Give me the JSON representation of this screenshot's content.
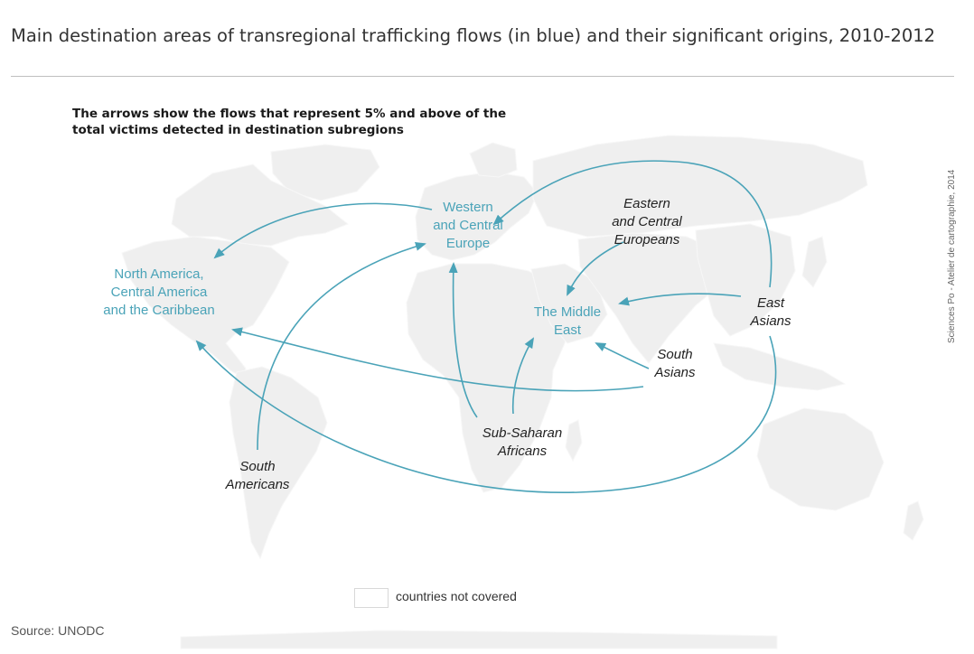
{
  "title": "Main destination areas of transregional trafficking flows (in blue) and their significant origins, 2010-2012",
  "subtitle": "The arrows show the flows that represent 5% and above of the total victims detected in destination subregions",
  "credit": "Sciences Po - Atelier de cartographie, 2014",
  "colors": {
    "flow": "#4aa3b8",
    "land": "#efefef",
    "destination_text": "#4aa3b8",
    "origin_text": "#222222"
  },
  "destinations": {
    "western_central_europe": [
      "Western",
      "and Central",
      "Europe"
    ],
    "north_america": [
      "North America,",
      "Central America",
      "and the Caribbean"
    ],
    "middle_east": [
      "The Middle",
      "East"
    ]
  },
  "origins": {
    "eastern_central_europeans": [
      "Eastern",
      "and Central",
      "Europeans"
    ],
    "east_asians": [
      "East",
      "Asians"
    ],
    "south_asians": [
      "South",
      "Asians"
    ],
    "sub_saharan_africans": [
      "Sub-Saharan",
      "Africans"
    ],
    "south_americans": [
      "South",
      "Americans"
    ]
  },
  "flows": [
    {
      "from": "Western and Central Europe",
      "to": "North America, Central America and the Caribbean"
    },
    {
      "from": "East Asians",
      "to": "Western and Central Europe"
    },
    {
      "from": "East Asians",
      "to": "North America, Central America and the Caribbean"
    },
    {
      "from": "East Asians",
      "to": "The Middle East"
    },
    {
      "from": "Eastern and Central Europeans",
      "to": "The Middle East"
    },
    {
      "from": "South Asians",
      "to": "The Middle East"
    },
    {
      "from": "South Asians",
      "to": "North America, Central America and the Caribbean"
    },
    {
      "from": "Sub-Saharan Africans",
      "to": "Western and Central Europe"
    },
    {
      "from": "Sub-Saharan Africans",
      "to": "The Middle East"
    },
    {
      "from": "South Americans",
      "to": "Western and Central Europe"
    }
  ],
  "legend": {
    "label": "countries not covered"
  },
  "source": "Source: UNODC"
}
